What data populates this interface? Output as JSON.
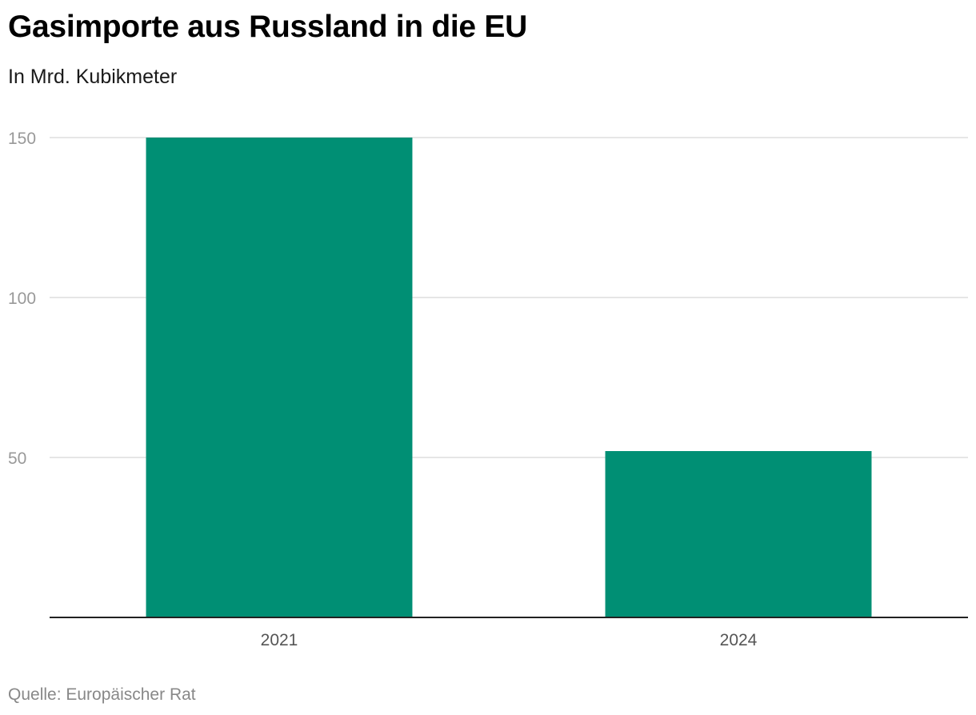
{
  "header": {
    "title": "Gasimporte aus Russland in die EU",
    "subtitle": "In Mrd. Kubikmeter"
  },
  "footer": {
    "source": "Quelle: Europäischer Rat"
  },
  "colors": {
    "bar": "#008f74",
    "grid": "#dddddd",
    "tick_label": "#999999",
    "category_label": "#555555",
    "baseline": "#222222"
  },
  "chart_data": {
    "type": "bar",
    "title": "Gasimporte aus Russland in die EU",
    "subtitle": "In Mrd. Kubikmeter",
    "xlabel": "",
    "ylabel": "",
    "categories": [
      "2021",
      "2024"
    ],
    "values": [
      150,
      52
    ],
    "ylim": [
      0,
      150
    ],
    "yticks": [
      50,
      100,
      150
    ],
    "grid": true,
    "legend": "none",
    "source": "Quelle: Europäischer Rat"
  }
}
